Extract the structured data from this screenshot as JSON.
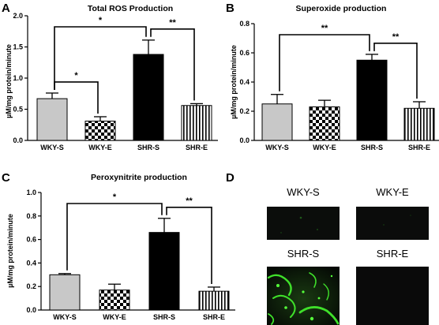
{
  "chart_data": [
    {
      "panel": "A",
      "type": "bar",
      "title": "Total ROS Production",
      "ylabel": "µM/mg protein/minute",
      "xlabel": "",
      "categories": [
        "WKY-S",
        "WKY-E",
        "SHR-S",
        "SHR-E"
      ],
      "values": [
        0.67,
        0.31,
        1.38,
        0.56
      ],
      "errors": [
        0.09,
        0.07,
        0.23,
        0.03
      ],
      "fills": [
        "gray",
        "checker",
        "black",
        "vertical-stripes"
      ],
      "ylim": [
        0,
        2.0
      ],
      "yticks": [
        "0.0",
        "0.5",
        "1.0",
        "1.5",
        "2.0"
      ],
      "significance": [
        {
          "from": 0,
          "to": 1,
          "label": "*"
        },
        {
          "from": 0,
          "to": 2,
          "label": "*"
        },
        {
          "from": 2,
          "to": 3,
          "label": "**"
        }
      ]
    },
    {
      "panel": "B",
      "type": "bar",
      "title": "Superoxide production",
      "ylabel": "µM/mg protein/minute",
      "xlabel": "",
      "categories": [
        "WKY-S",
        "WKY-E",
        "SHR-S",
        "SHR-E"
      ],
      "values": [
        0.25,
        0.23,
        0.55,
        0.22
      ],
      "errors": [
        0.065,
        0.045,
        0.04,
        0.045
      ],
      "fills": [
        "gray",
        "checker",
        "black",
        "vertical-stripes"
      ],
      "ylim": [
        0,
        0.8
      ],
      "yticks": [
        "0.0",
        "0.2",
        "0.4",
        "0.6",
        "0.8"
      ],
      "significance": [
        {
          "from": 0,
          "to": 2,
          "label": "**"
        },
        {
          "from": 2,
          "to": 3,
          "label": "**"
        }
      ]
    },
    {
      "panel": "C",
      "type": "bar",
      "title": "Peroxynitrite production",
      "ylabel": "µM/mg protein/minute",
      "xlabel": "",
      "categories": [
        "WKY-S",
        "WKY-E",
        "SHR-S",
        "SHR-E"
      ],
      "values": [
        0.3,
        0.17,
        0.66,
        0.16
      ],
      "errors": [
        0.01,
        0.05,
        0.12,
        0.035
      ],
      "fills": [
        "gray",
        "checker",
        "black",
        "vertical-stripes"
      ],
      "ylim": [
        0,
        1.0
      ],
      "yticks": [
        "0.0",
        "0.2",
        "0.4",
        "0.6",
        "0.8",
        "1.0"
      ],
      "significance": [
        {
          "from": 0,
          "to": 2,
          "label": "*"
        },
        {
          "from": 2,
          "to": 3,
          "label": "**"
        }
      ]
    }
  ],
  "panel_d": {
    "panel": "D",
    "images": [
      {
        "label": "WKY-S",
        "fluorescence": "faint"
      },
      {
        "label": "WKY-E",
        "fluorescence": "faint"
      },
      {
        "label": "SHR-S",
        "fluorescence": "strong"
      },
      {
        "label": "SHR-E",
        "fluorescence": "none"
      }
    ],
    "fluorescence_color": "#33dd22"
  }
}
